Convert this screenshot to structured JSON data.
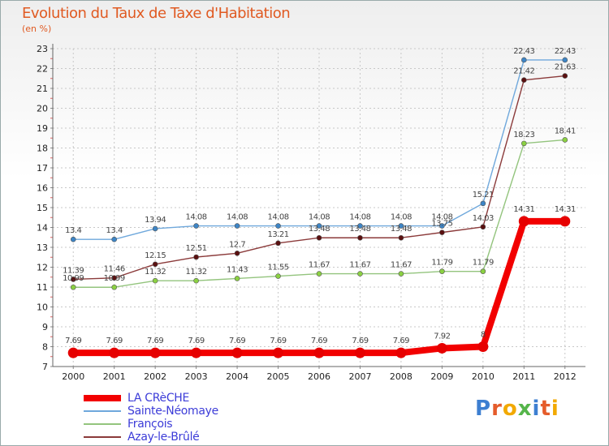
{
  "title": "Evolution du Taux de Taxe d'Habitation",
  "subtitle": "(en %)",
  "logo": {
    "letters": [
      "P",
      "r",
      "o",
      "x",
      "i",
      "t",
      "i"
    ],
    "colors": [
      "#3d7fd1",
      "#e55c2b",
      "#f2a900",
      "#55b54a",
      "#3d7fd1",
      "#e55c2b",
      "#f2a900"
    ]
  },
  "chart_data": {
    "type": "line",
    "x": [
      "2000",
      "2001",
      "2002",
      "2003",
      "2004",
      "2005",
      "2006",
      "2007",
      "2008",
      "2009",
      "2010",
      "2011",
      "2012"
    ],
    "ylim": [
      7,
      23
    ],
    "yticks": [
      7,
      8,
      9,
      10,
      11,
      12,
      13,
      14,
      15,
      16,
      17,
      18,
      19,
      20,
      21,
      22,
      23
    ],
    "grid": true,
    "legend_position": "bottom-left",
    "series": [
      {
        "name": "Sainte-Néomaye",
        "color": "#6fa8dc",
        "dot": "#3d85c6",
        "width": 1.4,
        "values": [
          13.4,
          13.4,
          13.94,
          14.08,
          14.08,
          14.08,
          14.08,
          14.08,
          14.08,
          14.08,
          15.21,
          22.43,
          22.43
        ],
        "labels": [
          "13.4",
          "13.4",
          "13.94",
          "14.08",
          "14.08",
          "14.08",
          "14.08",
          "14.08",
          "14.08",
          "14.08",
          "15.21",
          "22.43",
          "22.43"
        ]
      },
      {
        "name": "Azay-le-Brûlé",
        "color": "#8b3a3a",
        "dot": "#5a1010",
        "width": 1.4,
        "values": [
          11.39,
          11.46,
          12.15,
          12.51,
          12.7,
          13.21,
          13.48,
          13.48,
          13.48,
          13.75,
          14.03,
          21.42,
          21.63
        ],
        "labels": [
          "11.39",
          "11.46",
          "12.15",
          "12.51",
          "12.7",
          "13.21",
          "13.48",
          "13.48",
          "13.48",
          "13.75",
          "14.03",
          "21.42",
          "21.63"
        ]
      },
      {
        "name": "François",
        "color": "#93c47d",
        "dot": "#8bd142",
        "width": 1.4,
        "values": [
          10.99,
          10.99,
          11.32,
          11.32,
          11.43,
          11.55,
          11.67,
          11.67,
          11.67,
          11.79,
          11.79,
          18.23,
          18.41
        ],
        "labels": [
          "10.99",
          "10.99",
          "11.32",
          "11.32",
          "11.43",
          "11.55",
          "11.67",
          "11.67",
          "11.67",
          "11.79",
          "11.79",
          "18.23",
          "18.41"
        ]
      },
      {
        "name": "LA CRèCHE",
        "color": "#f20000",
        "dot": "#e60000",
        "width": 8,
        "values": [
          7.69,
          7.69,
          7.69,
          7.69,
          7.69,
          7.69,
          7.69,
          7.69,
          7.69,
          7.92,
          8,
          14.31,
          14.31
        ],
        "labels": [
          "7.69",
          "7.69",
          "7.69",
          "7.69",
          "7.69",
          "7.69",
          "7.69",
          "7.69",
          "7.69",
          "7.92",
          "8",
          "14.31",
          "14.31"
        ]
      }
    ],
    "legend": [
      {
        "name": "LA CRèCHE",
        "color": "#f20000",
        "width": 8
      },
      {
        "name": "Sainte-Néomaye",
        "color": "#6fa8dc",
        "width": 2
      },
      {
        "name": "François",
        "color": "#93c47d",
        "width": 2
      },
      {
        "name": "Azay-le-Brûlé",
        "color": "#8b3a3a",
        "width": 2
      }
    ]
  }
}
